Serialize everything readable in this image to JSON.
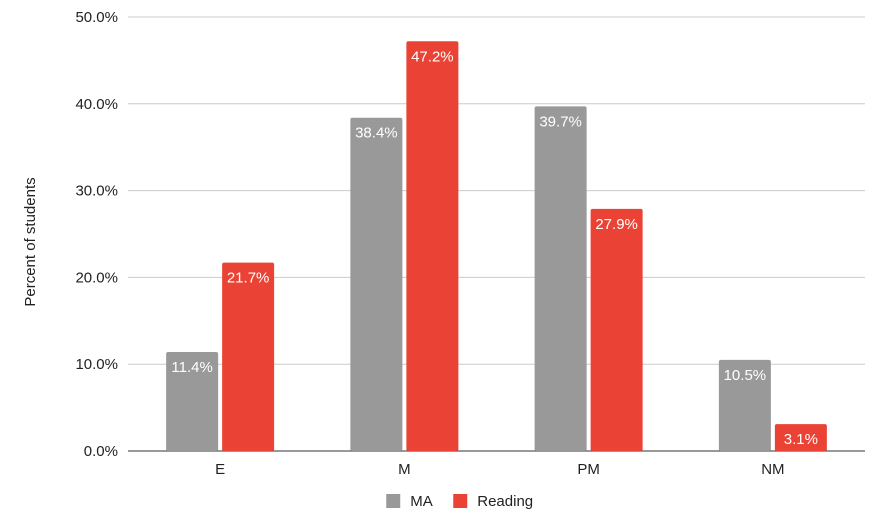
{
  "chart_data": {
    "type": "bar",
    "categories": [
      "E",
      "M",
      "PM",
      "NM"
    ],
    "series": [
      {
        "name": "MA",
        "color": "#999999",
        "values": [
          11.4,
          38.4,
          39.7,
          10.5
        ],
        "labels": [
          "11.4%",
          "38.4%",
          "39.7%",
          "10.5%"
        ]
      },
      {
        "name": "Reading",
        "color": "#ea4335",
        "values": [
          21.7,
          47.2,
          27.9,
          3.1
        ],
        "labels": [
          "21.7%",
          "47.2%",
          "27.9%",
          "3.1%"
        ]
      }
    ],
    "ylabel": "Percent of students",
    "ylim": [
      0,
      50
    ],
    "yticks": [
      0,
      10,
      20,
      30,
      40,
      50
    ],
    "ytick_labels": [
      "0.0%",
      "10.0%",
      "20.0%",
      "30.0%",
      "40.0%",
      "50.0%"
    ],
    "grid": true,
    "legend_position": "bottom-center"
  }
}
